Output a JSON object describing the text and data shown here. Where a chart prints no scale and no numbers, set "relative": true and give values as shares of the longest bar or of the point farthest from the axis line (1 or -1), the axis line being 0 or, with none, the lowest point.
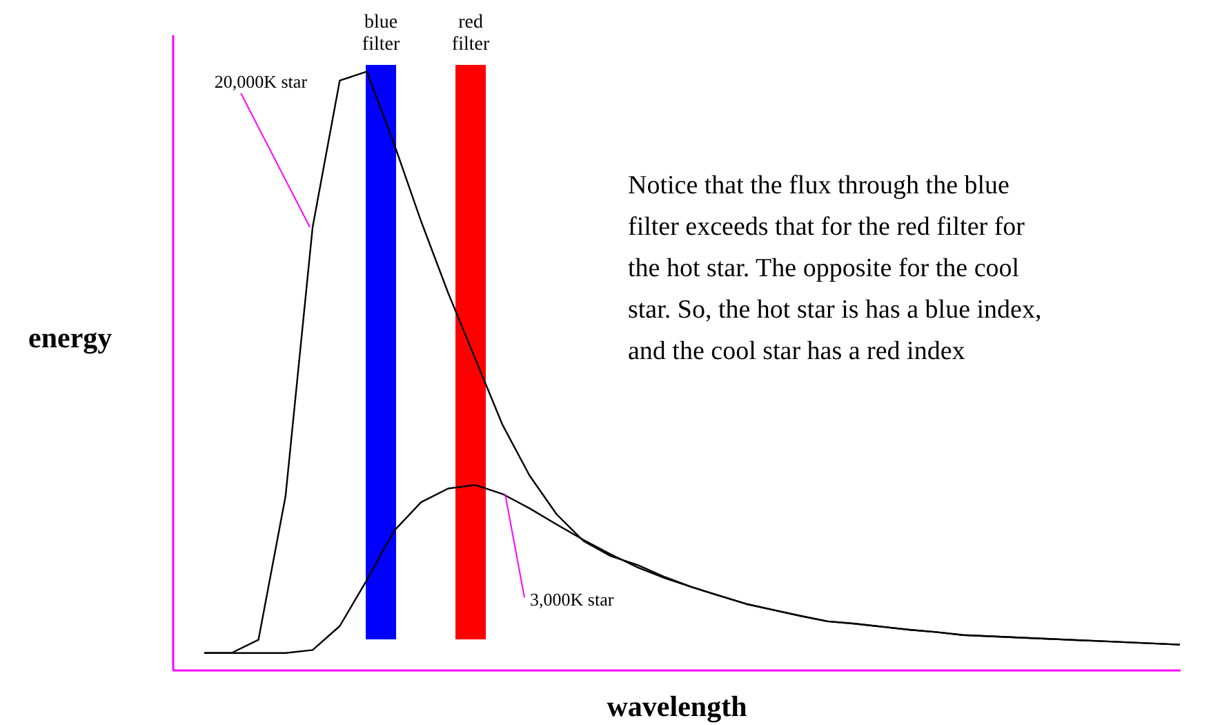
{
  "chart_data": {
    "type": "line",
    "relative": true,
    "xlabel": "wavelength",
    "ylabel": "energy",
    "categories": [
      null,
      null,
      null,
      null,
      null,
      null,
      null,
      null,
      null,
      null,
      null,
      null,
      null,
      null,
      null,
      null,
      null,
      null,
      null,
      null,
      null,
      null,
      null,
      null,
      null,
      null,
      null,
      null,
      null,
      null,
      null,
      null,
      null,
      null,
      null,
      null,
      null
    ],
    "series": [
      {
        "name": "20,000K star",
        "color": "#000000",
        "values": [
          0.028,
          0.028,
          0.05,
          0.29,
          0.74,
          0.985,
          1,
          0.88,
          0.75,
          0.63,
          0.52,
          0.41,
          0.325,
          0.26,
          0.215,
          0.19,
          0.175,
          0.155,
          0.138,
          0.124,
          0.11,
          0.1,
          0.09,
          0.081,
          0.077,
          0.072,
          0.067,
          0.063,
          0.058,
          0.056,
          0.054,
          0.052,
          0.05,
          0.048,
          0.046,
          0.044,
          0.042
        ]
      },
      {
        "name": "3,000K star",
        "color": "#000000",
        "values": [
          0.028,
          0.028,
          0.028,
          0.028,
          0.033,
          0.073,
          0.15,
          0.232,
          0.28,
          0.303,
          0.309,
          0.294,
          0.27,
          0.243,
          0.217,
          0.193,
          0.171,
          0.153,
          0.138,
          0.124,
          0.11,
          0.1,
          0.09,
          0.081,
          0.077,
          0.072,
          0.067,
          0.063,
          0.058,
          0.056,
          0.054,
          0.052,
          0.05,
          0.048,
          0.046,
          0.044,
          0.042
        ]
      }
    ],
    "annotations": [
      "blue filter",
      "red filter",
      "Notice that the flux through the blue filter exceeds that for the red filter for the hot star.  The opposite for the cool star. So, the hot star is has a blue index, and the cool star has a red index"
    ]
  }
}
